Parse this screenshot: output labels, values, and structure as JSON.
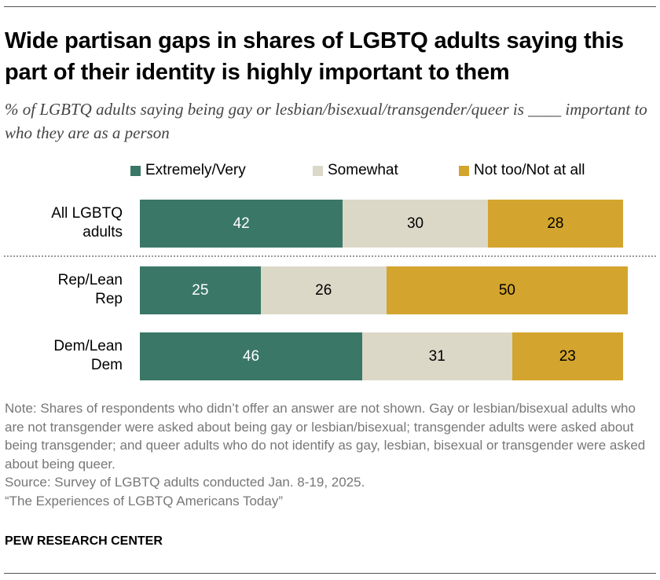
{
  "title": "Wide partisan gaps in shares of LGBTQ adults saying this part of their identity is highly important to them",
  "subtitle": "% of LGBTQ adults saying being gay or lesbian/bisexual/transgender/queer is ____ important to who they are as a person",
  "chart_data": {
    "type": "bar",
    "orientation": "horizontal-stacked",
    "categories": [
      "All LGBTQ adults",
      "Rep/Lean Rep",
      "Dem/Lean Dem"
    ],
    "series": [
      {
        "name": "Extremely/Very",
        "color": "#3a7767",
        "values": [
          42,
          25,
          46
        ]
      },
      {
        "name": "Somewhat",
        "color": "#dcd8c8",
        "values": [
          30,
          26,
          31
        ]
      },
      {
        "name": "Not too/Not at all",
        "color": "#d3a52e",
        "values": [
          28,
          50,
          23
        ]
      }
    ],
    "legend": "top"
  },
  "note": "Note: Shares of respondents who didn’t offer an answer are not shown. Gay or lesbian/bisexual adults who are not transgender were asked about being gay or lesbian/bisexual; transgender adults were asked about being transgender; and queer adults who do not identify as gay, lesbian, bisexual or transgender were asked about being queer.",
  "source": "Source: Survey of LGBTQ adults conducted Jan. 8-19, 2025.",
  "report": "“The Experiences of LGBTQ Americans Today”",
  "brand": "PEW RESEARCH CENTER"
}
